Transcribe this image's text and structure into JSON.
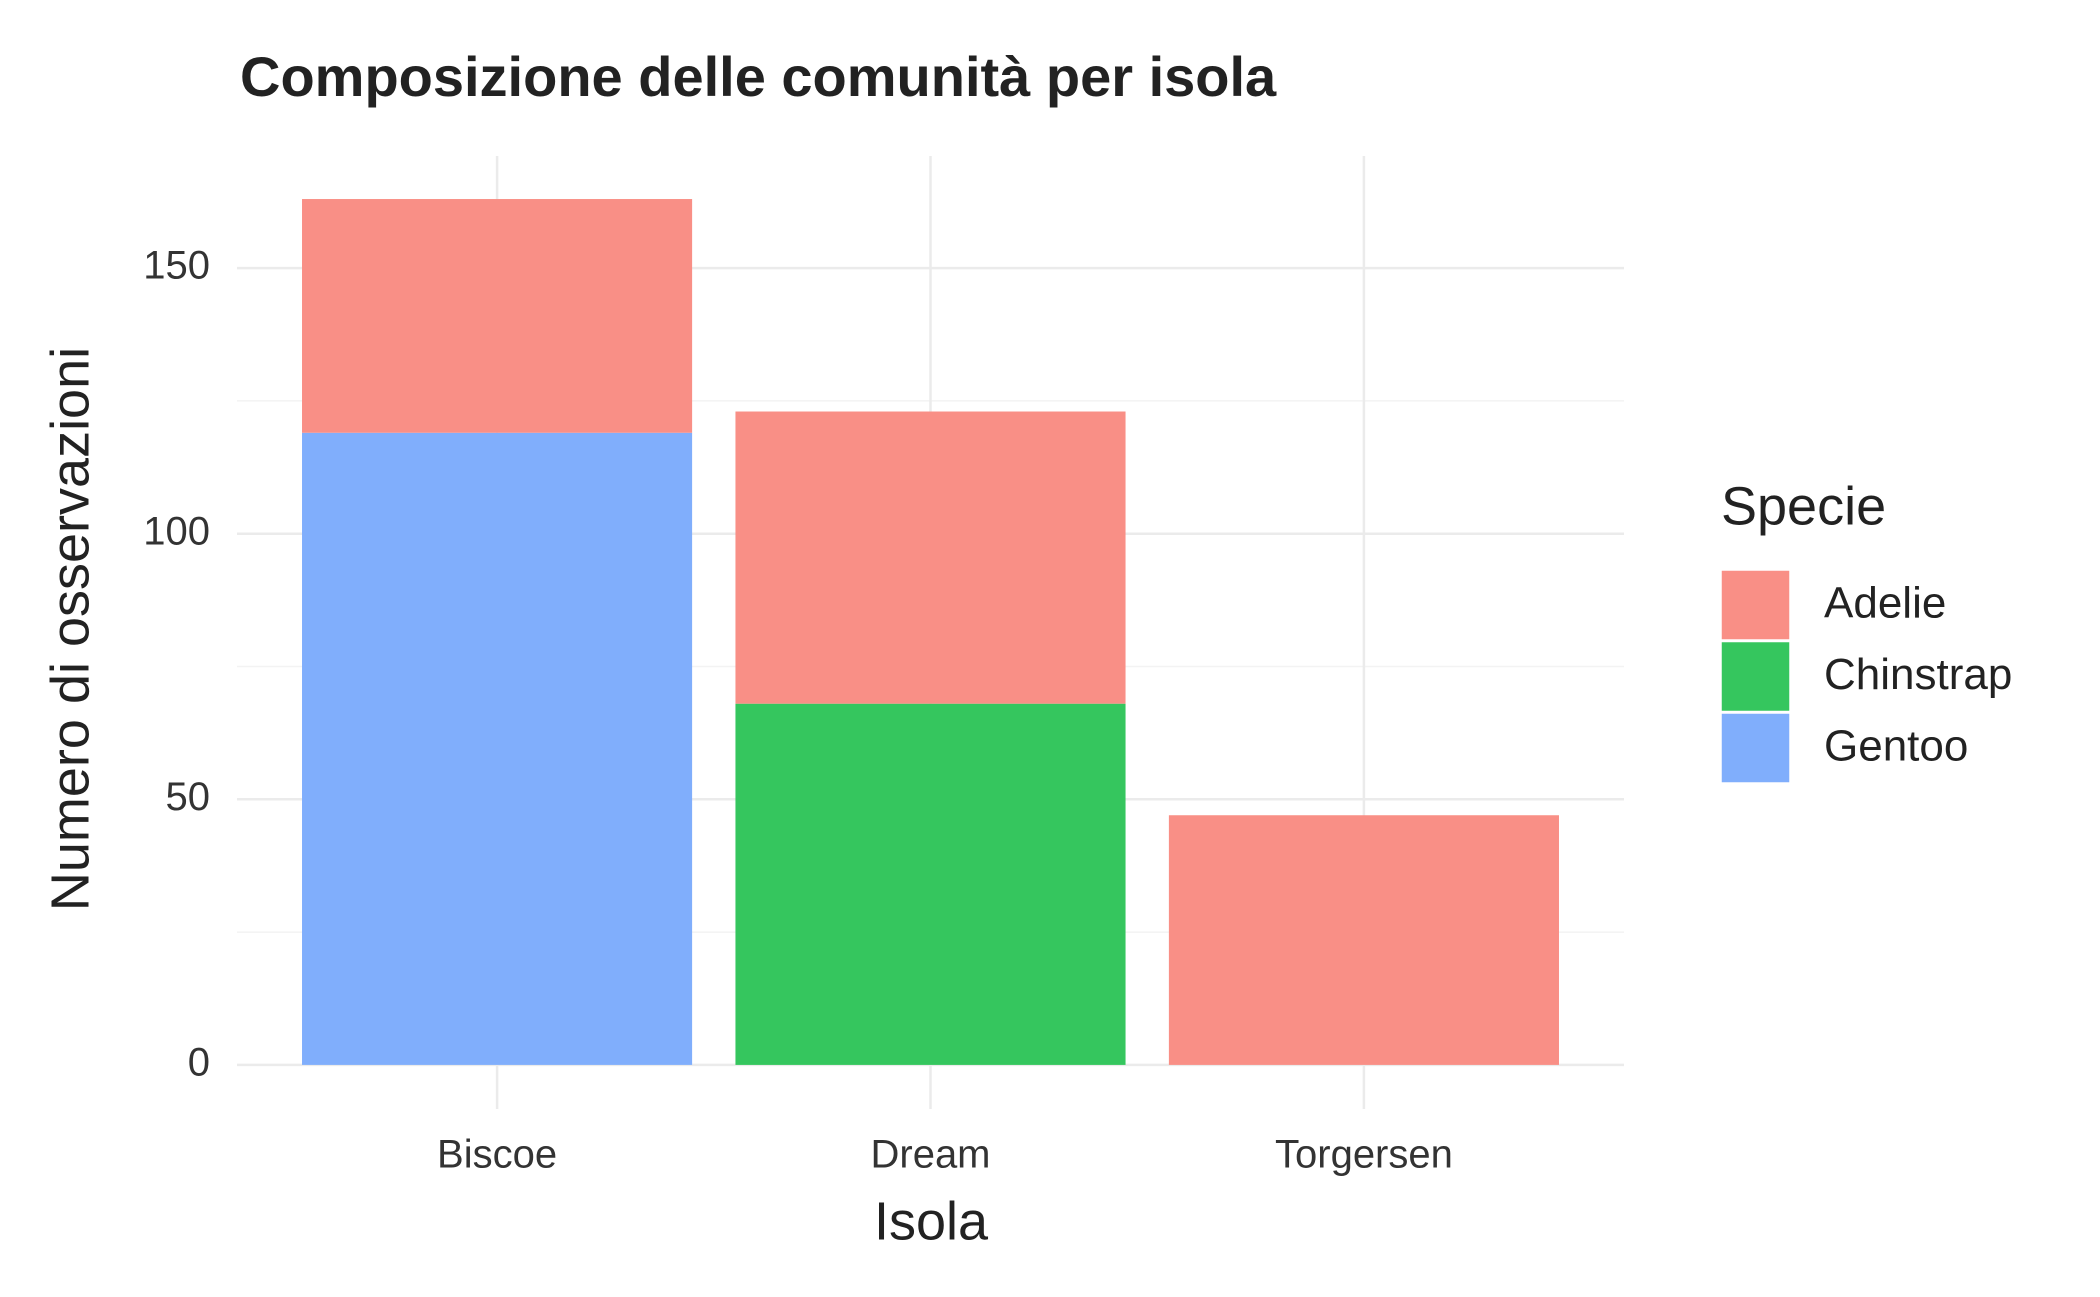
{
  "chart_data": {
    "type": "stacked_bar",
    "title": "Composizione delle comunità per isola",
    "x_label": "Isola",
    "y_label": "Numero di osservazioni",
    "legend_title": "Specie",
    "legend_position": "right",
    "categories": [
      "Biscoe",
      "Dream",
      "Torgersen"
    ],
    "series": [
      {
        "name": "Adelie",
        "color": "#f98f86",
        "values": [
          44,
          55,
          47
        ]
      },
      {
        "name": "Chinstrap",
        "color": "#35c65e",
        "values": [
          null,
          68,
          null
        ]
      },
      {
        "name": "Gentoo",
        "color": "#80aefc",
        "values": [
          119,
          null,
          null
        ]
      }
    ],
    "ylim": [
      -8.3,
      171.1
    ],
    "yticks": [
      0,
      50,
      100,
      150
    ],
    "minor_yticks": [
      25,
      75,
      125
    ],
    "grid": true
  }
}
